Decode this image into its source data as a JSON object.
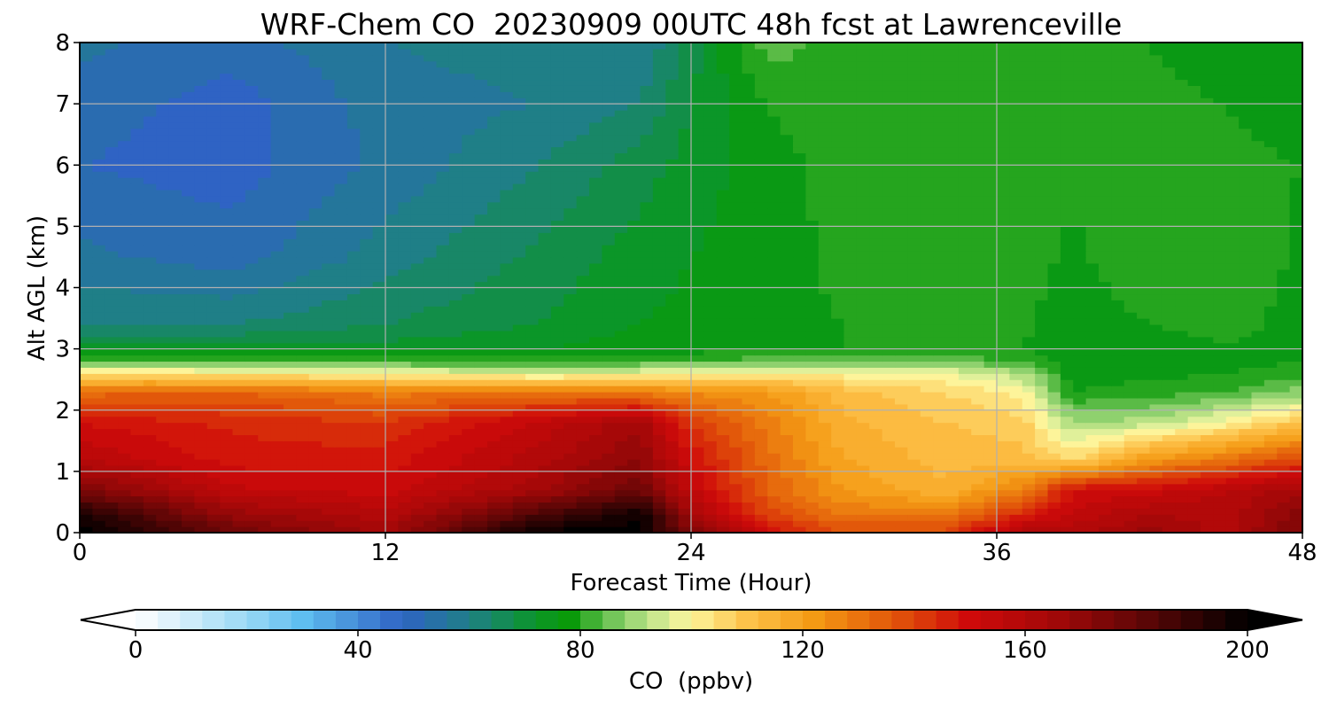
{
  "chart_data": {
    "type": "heatmap",
    "title": "WRF-Chem CO  20230909 00UTC 48h fcst at Lawrenceville",
    "xlabel": "Forecast Time (Hour)",
    "ylabel": "Alt AGL (km)",
    "xlim": [
      0,
      48
    ],
    "ylim": [
      0,
      8
    ],
    "x_ticks": [
      0,
      12,
      24,
      36,
      48
    ],
    "y_ticks": [
      0,
      1,
      2,
      3,
      4,
      5,
      6,
      7,
      8
    ],
    "grid": true,
    "colorbar": {
      "label": "CO  (ppbv)",
      "min": 0,
      "max": 200,
      "ticks": [
        0,
        40,
        80,
        120,
        160,
        200
      ],
      "extend": "both",
      "orientation": "horizontal",
      "stops": [
        {
          "value": 0,
          "color": "#ffffff"
        },
        {
          "value": 20,
          "color": "#9ad8f5"
        },
        {
          "value": 30,
          "color": "#5fbef0"
        },
        {
          "value": 48,
          "color": "#2f63c4"
        },
        {
          "value": 60,
          "color": "#1f7f87"
        },
        {
          "value": 72,
          "color": "#0b9628"
        },
        {
          "value": 78,
          "color": "#0a9a0a"
        },
        {
          "value": 88,
          "color": "#8fd16e"
        },
        {
          "value": 96,
          "color": "#e0f09a"
        },
        {
          "value": 100,
          "color": "#fdf49a"
        },
        {
          "value": 110,
          "color": "#fdc24a"
        },
        {
          "value": 122,
          "color": "#f49a14"
        },
        {
          "value": 136,
          "color": "#e2580a"
        },
        {
          "value": 150,
          "color": "#cf0a0a"
        },
        {
          "value": 166,
          "color": "#a00808"
        },
        {
          "value": 182,
          "color": "#5a0606"
        },
        {
          "value": 200,
          "color": "#000000"
        }
      ]
    },
    "field": {
      "x": [
        0,
        6,
        12,
        18,
        22,
        24,
        27,
        30,
        34,
        37,
        39,
        42,
        45,
        48
      ],
      "y": [
        0,
        0.3,
        0.7,
        1.2,
        1.8,
        2.3,
        2.6,
        2.8,
        3.0,
        3.4,
        4.5,
        6,
        7,
        8
      ],
      "values": [
        [
          200,
          178,
          165,
          200,
          200,
          175,
          150,
          138,
          140,
          162,
          160,
          168,
          160,
          175
        ],
        [
          195,
          168,
          160,
          185,
          198,
          165,
          140,
          130,
          128,
          145,
          155,
          162,
          160,
          172
        ],
        [
          175,
          155,
          152,
          165,
          178,
          155,
          134,
          122,
          115,
          128,
          150,
          152,
          158,
          165
        ],
        [
          158,
          148,
          148,
          160,
          170,
          150,
          132,
          118,
          112,
          112,
          105,
          122,
          130,
          140
        ],
        [
          150,
          145,
          142,
          155,
          165,
          142,
          128,
          115,
          110,
          108,
          90,
          92,
          100,
          110
        ],
        [
          132,
          134,
          128,
          130,
          128,
          125,
          122,
          112,
          106,
          100,
          78,
          80,
          82,
          88
        ],
        [
          104,
          102,
          100,
          96,
          98,
          100,
          102,
          100,
          98,
          92,
          75,
          77,
          78,
          80
        ],
        [
          85,
          84,
          82,
          80,
          82,
          83,
          84,
          84,
          84,
          82,
          74,
          76,
          77,
          78
        ],
        [
          72,
          72,
          72,
          74,
          76,
          76,
          78,
          78,
          79,
          78,
          74,
          76,
          77,
          77
        ],
        [
          62,
          62,
          66,
          70,
          74,
          75,
          77,
          78,
          80,
          79,
          75,
          78,
          80,
          76
        ],
        [
          55,
          52,
          60,
          67,
          72,
          74,
          76,
          79,
          81,
          80,
          77,
          82,
          82,
          77
        ],
        [
          50,
          48,
          55,
          62,
          68,
          72,
          76,
          80,
          80,
          80,
          79,
          81,
          79,
          78
        ],
        [
          52,
          48,
          56,
          58,
          62,
          70,
          78,
          82,
          79,
          81,
          80,
          79,
          78,
          76
        ],
        [
          55,
          52,
          58,
          60,
          58,
          68,
          84,
          80,
          78,
          82,
          81,
          78,
          76,
          75
        ]
      ]
    }
  }
}
